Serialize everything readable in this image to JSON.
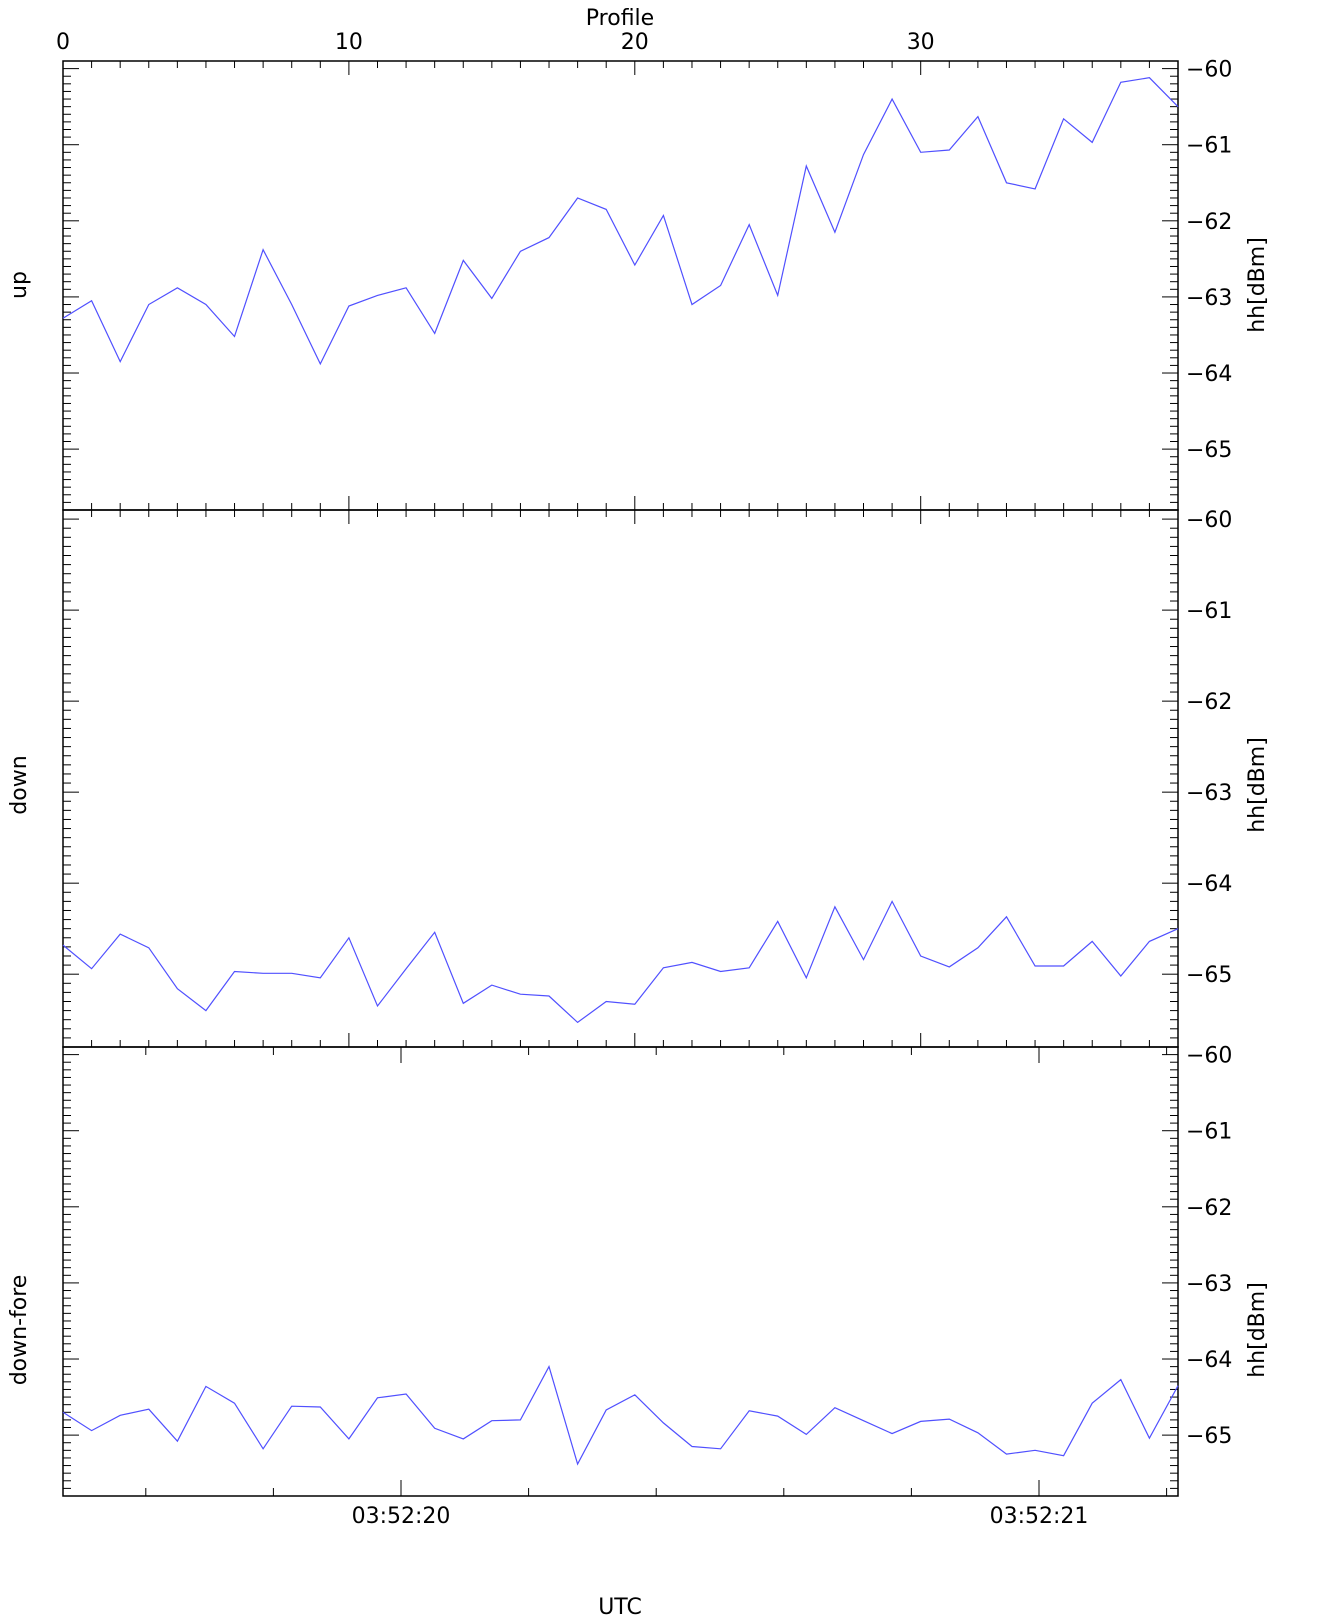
{
  "colors": {
    "line": "#5050ff",
    "axis": "#000000",
    "background": "#ffffff"
  },
  "top_axis": {
    "label": "Profile",
    "range": [
      0,
      39
    ],
    "ticks": [
      0,
      10,
      20,
      30
    ]
  },
  "bottom_axis": {
    "label": "UTC",
    "tick_labels": [
      "03:52:20",
      "03:52:21"
    ]
  },
  "chart_data": [
    {
      "type": "line",
      "title": "",
      "xlabel": "Profile",
      "ylabel": "hh[dBm]",
      "panel_label": "up",
      "ylim": [
        -65.8,
        -59.9
      ],
      "yticks": [
        -60,
        -61,
        -62,
        -63,
        -64,
        -65
      ],
      "series": [
        {
          "values": [
            -63.28,
            -63.05,
            -63.85,
            -63.1,
            -62.88,
            -63.1,
            -63.52,
            -62.38,
            -63.1,
            -63.88,
            -63.12,
            -62.98,
            -62.88,
            -63.48,
            -62.52,
            -63.02,
            -62.4,
            -62.22,
            -61.7,
            -61.85,
            -62.58,
            -61.93,
            -63.1,
            -62.85,
            -62.05,
            -62.98,
            -61.28,
            -62.15,
            -61.13,
            -60.4,
            -61.1,
            -61.07,
            -60.63,
            -61.5,
            -61.58,
            -60.66,
            -60.97,
            -60.18,
            -60.12,
            -60.5
          ]
        }
      ]
    },
    {
      "type": "line",
      "title": "",
      "xlabel": "Profile",
      "ylabel": "hh[dBm]",
      "panel_label": "down",
      "ylim": [
        -65.8,
        -59.9
      ],
      "yticks": [
        -60,
        -61,
        -62,
        -63,
        -64,
        -65
      ],
      "series": [
        {
          "values": [
            -64.68,
            -64.94,
            -64.56,
            -64.71,
            -65.16,
            -65.4,
            -64.97,
            -64.99,
            -64.99,
            -65.04,
            -64.6,
            -65.35,
            -64.94,
            -64.54,
            -65.32,
            -65.12,
            -65.22,
            -65.24,
            -65.53,
            -65.3,
            -65.33,
            -64.93,
            -64.87,
            -64.97,
            -64.93,
            -64.42,
            -65.04,
            -64.26,
            -64.84,
            -64.2,
            -64.8,
            -64.92,
            -64.71,
            -64.37,
            -64.91,
            -64.91,
            -64.64,
            -65.02,
            -64.64,
            -64.5
          ]
        }
      ]
    },
    {
      "type": "line",
      "title": "",
      "xlabel": "UTC",
      "ylabel": "hh[dBm]",
      "panel_label": "down-fore",
      "ylim": [
        -65.8,
        -59.9
      ],
      "yticks": [
        -60,
        -61,
        -62,
        -63,
        -64,
        -65
      ],
      "series": [
        {
          "values": [
            -64.7,
            -64.94,
            -64.74,
            -64.66,
            -65.08,
            -64.36,
            -64.58,
            -65.18,
            -64.62,
            -64.63,
            -65.05,
            -64.51,
            -64.46,
            -64.91,
            -65.05,
            -64.81,
            -64.8,
            -64.1,
            -65.38,
            -64.67,
            -64.47,
            -64.84,
            -65.15,
            -65.18,
            -64.68,
            -64.75,
            -64.99,
            -64.64,
            -64.81,
            -64.98,
            -64.82,
            -64.79,
            -64.97,
            -65.25,
            -65.2,
            -65.27,
            -64.58,
            -64.27,
            -65.04,
            -64.35
          ]
        }
      ]
    }
  ]
}
